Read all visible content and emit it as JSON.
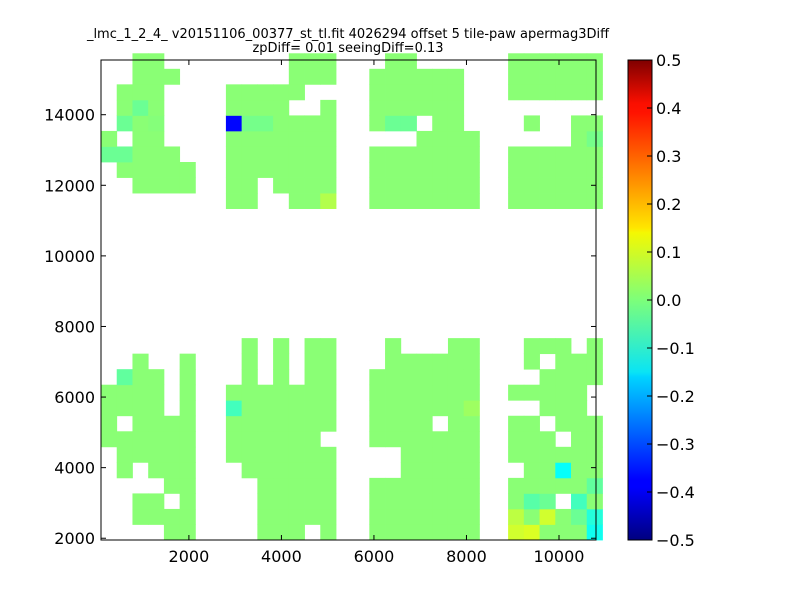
{
  "chart_data": {
    "type": "heatmap",
    "title": "_lmc_1_2_4_ v20151106_00377_st_tl.fit 4026294 offset 5 tile-paw apermag3Diff",
    "subtitle": "zpDiff= 0.01 seeingDiff=0.13",
    "xlabel": "",
    "ylabel": "",
    "xlim": [
      100,
      10800
    ],
    "ylim": [
      1950,
      15550
    ],
    "x_ticks": [
      "2000",
      "4000",
      "6000",
      "8000",
      "10000"
    ],
    "y_ticks": [
      "2000",
      "4000",
      "6000",
      "8000",
      "10000",
      "12000",
      "14000"
    ],
    "colorbar": {
      "colormap": "jet",
      "range": [
        -0.5,
        0.5
      ],
      "tick_labels": [
        "0.5",
        "0.4",
        "0.3",
        "0.2",
        "0.1",
        "0.0",
        "−0.1",
        "−0.2",
        "−0.3",
        "−0.4",
        "−0.5"
      ]
    },
    "cell_size": [
      340,
      440
    ],
    "default_value": 0.01,
    "cell_value_scale": 1000,
    "detectors": [
      {
        "x": 100,
        "y": 11340,
        "cols": 6,
        "rows": 10,
        "cells": [
          "___20_____",
          "__02_200__",
          "_000002000",
          "_000000000",
          "_000____0_",
          "_00_______"
        ],
        "overrides": [
          [
            0,
            5,
            -10
          ],
          [
            3,
            5,
            5
          ]
        ]
      },
      {
        "x": 2800,
        "y": 11340,
        "cols": 7,
        "rows": 10,
        "cells": [
          "00000000__",
          "00000000__",
          "__000000__",
          "_0000000__",
          "000000_000",
          "000000__00",
          "0000000_00"
        ],
        "overrides": [
          [
            0,
            5,
            -370
          ],
          [
            1,
            5,
            -10
          ],
          [
            2,
            5,
            -10
          ],
          [
            6,
            0,
            50
          ]
        ]
      },
      {
        "x": 5900,
        "y": 11340,
        "cols": 7,
        "rows": 10,
        "cells": [
          "0000_0000_",
          "0000_00000",
          "0000_00000",
          "00000_000_",
          "000000000_",
          "000000000_",
          "00000_____"
        ],
        "overrides": [
          [
            1,
            5,
            -20
          ],
          [
            2,
            5,
            -20
          ],
          [
            3,
            5,
            -10
          ]
        ]
      },
      {
        "x": 8900,
        "y": 11340,
        "cols": 6,
        "rows": 10,
        "cells": [
          "0000___000",
          "0000_0_000",
          "0000___000",
          "0000___000",
          "000000_000",
          "000000_000"
        ],
        "overrides": [
          [
            5,
            4,
            -10
          ]
        ]
      },
      {
        "x": 100,
        "y": 1950,
        "cols": 6,
        "rows": 13,
        "cells": [
          "______0000___",
          "____000_000__",
          "_00__0000000_",
          "_00_0000000__",
          "00_00000_____",
          "000000000000_"
        ],
        "overrides": [
          [
            1,
            10,
            -30
          ],
          [
            1,
            11,
            -50
          ]
        ]
      },
      {
        "x": 2800,
        "y": 1950,
        "cols": 7,
        "rows": 13,
        "cells": [
          "_____00000___",
          "____000000000",
          "0000000000___",
          "0000000000000",
          "0000000000___",
          "_000000000000",
          "000000_000000"
        ],
        "overrides": [
          [
            0,
            8,
            -60
          ]
        ]
      },
      {
        "x": 5900,
        "y": 1950,
        "cols": 7,
        "rows": 13,
        "cells": [
          "0000__00000__",
          "0000__0000000",
          "000000000000_",
          "000000000000_",
          "0000000_0000_",
          "0000000000000",
          "0000000000000"
        ],
        "overrides": [
          [
            6,
            8,
            30
          ]
        ]
      },
      {
        "x": 8900,
        "y": 1950,
        "cols": 6,
        "rows": 13,
        "cells": [
          "0000_000_0___",
          "00000000_0_00",
          "0000000_000_0",
          "00_000_000000",
          "000000000000_",
          "00000000__000"
        ],
        "overrides": [
          [
            0,
            0,
            80
          ],
          [
            0,
            1,
            60
          ],
          [
            1,
            0,
            90
          ],
          [
            1,
            2,
            -40
          ],
          [
            2,
            1,
            80
          ],
          [
            2,
            2,
            -20
          ],
          [
            3,
            2,
            -50
          ],
          [
            3,
            4,
            -120
          ],
          [
            4,
            1,
            -20
          ],
          [
            4,
            2,
            -60
          ],
          [
            5,
            0,
            -110
          ],
          [
            5,
            1,
            -90
          ],
          [
            5,
            3,
            -30
          ]
        ]
      }
    ]
  }
}
